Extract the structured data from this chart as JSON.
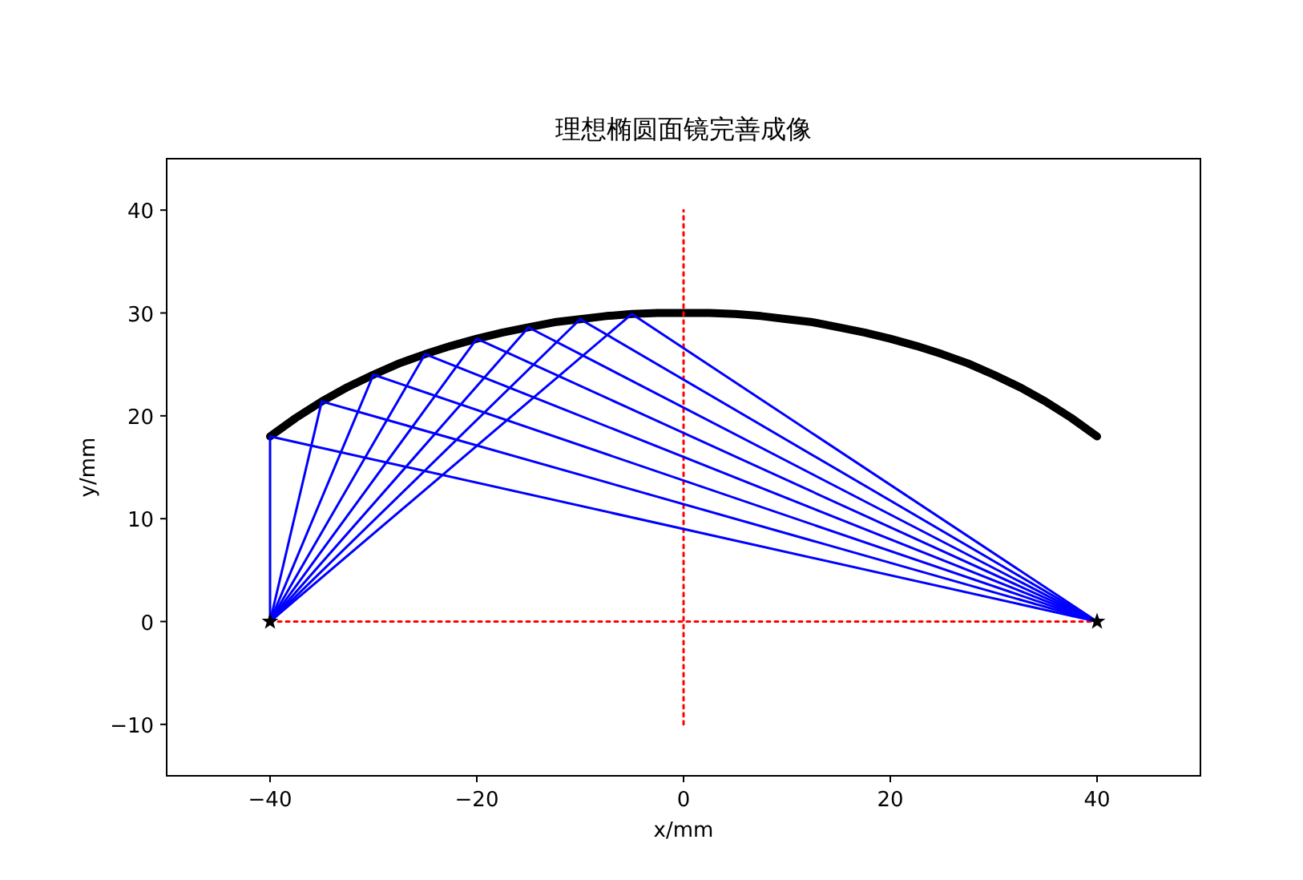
{
  "chart_data": {
    "type": "line",
    "title": "理想椭圆面镜完善成像",
    "xlabel": "x/mm",
    "ylabel": "y/mm",
    "xlim": [
      -50,
      50
    ],
    "xticks": [
      -40,
      -20,
      0,
      20,
      40
    ],
    "ylim": [
      -15,
      45
    ],
    "yticks": [
      -10,
      0,
      10,
      20,
      30,
      40
    ],
    "series": [
      {
        "color": "#000000",
        "x": [
          -40,
          -37.5,
          -35,
          -32.5,
          -30,
          -27.5,
          -25,
          -22.5,
          -20,
          -17.5,
          -15,
          -12.5,
          -10,
          -7.5,
          -5,
          -2.5,
          0,
          2.5,
          5,
          7.5,
          10,
          12.5,
          15,
          17.5,
          20,
          22.5,
          25,
          27.5,
          30,
          32.5,
          35,
          37.5,
          40
        ],
        "values": [
          18,
          19.8,
          21.4,
          22.8,
          24,
          25.1,
          26,
          26.8,
          27.5,
          28.1,
          28.6,
          29.1,
          29.4,
          29.7,
          29.9,
          30,
          30,
          30,
          29.9,
          29.7,
          29.4,
          29.1,
          28.6,
          28.1,
          27.5,
          26.8,
          26,
          25.1,
          24,
          22.8,
          21.4,
          19.8,
          18
        ]
      },
      {
        "color": "#ff0000",
        "line_style": "dotted",
        "x": [
          -40,
          40
        ],
        "values": [
          0,
          0
        ]
      },
      {
        "color": "#ff0000",
        "line_style": "dotted",
        "x": [
          0,
          0
        ],
        "values": [
          -10,
          40
        ]
      },
      {
        "color": "#0000ff",
        "x": [
          -40,
          -40,
          40
        ],
        "values": [
          0,
          18,
          0
        ]
      },
      {
        "color": "#0000ff",
        "x": [
          -40,
          -35,
          40
        ],
        "values": [
          0,
          21.4,
          0
        ]
      },
      {
        "color": "#0000ff",
        "x": [
          -40,
          -30,
          40
        ],
        "values": [
          0,
          24,
          0
        ]
      },
      {
        "color": "#0000ff",
        "x": [
          -40,
          -25,
          40
        ],
        "values": [
          0,
          26,
          0
        ]
      },
      {
        "color": "#0000ff",
        "x": [
          -40,
          -20,
          40
        ],
        "values": [
          0,
          27.5,
          0
        ]
      },
      {
        "color": "#0000ff",
        "x": [
          -40,
          -15,
          40
        ],
        "values": [
          0,
          28.6,
          0
        ]
      },
      {
        "color": "#0000ff",
        "x": [
          -40,
          -10,
          40
        ],
        "values": [
          0,
          29.4,
          0
        ]
      },
      {
        "color": "#0000ff",
        "x": [
          -40,
          -5,
          40
        ],
        "values": [
          0,
          29.9,
          0
        ]
      },
      {
        "type": "scatter",
        "color": "#000000",
        "marker": "star",
        "x": [
          -40,
          40
        ],
        "values": [
          0,
          0
        ]
      }
    ]
  }
}
